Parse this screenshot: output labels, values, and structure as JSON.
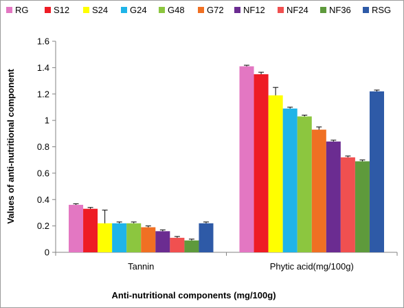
{
  "chart_data": {
    "type": "bar",
    "title": "",
    "xlabel": "Anti-nutritional components (mg/100g)",
    "ylabel": "Values of anti-nutritional component",
    "ylim": [
      0,
      1.6
    ],
    "yticks": [
      "0",
      "0.2",
      "0.4",
      "0.6",
      "0.8",
      "1",
      "1.2",
      "1.4",
      "1.6"
    ],
    "categories": [
      "Tannin",
      "Phytic acid(mg/100g)"
    ],
    "legend_position": "top",
    "grid": false,
    "error_bars": true,
    "series": [
      {
        "name": "RG",
        "color": "#e377c2",
        "values": [
          0.36,
          1.41
        ],
        "errors": [
          0.008,
          0.008
        ]
      },
      {
        "name": "S12",
        "color": "#ee1c25",
        "values": [
          0.33,
          1.35
        ],
        "errors": [
          0.01,
          0.015
        ]
      },
      {
        "name": "S24",
        "color": "#ffff00",
        "values": [
          0.22,
          1.19
        ],
        "errors": [
          0.1,
          0.06
        ]
      },
      {
        "name": "G24",
        "color": "#1fb4e8",
        "values": [
          0.22,
          1.09
        ],
        "errors": [
          0.01,
          0.01
        ]
      },
      {
        "name": "G48",
        "color": "#8cc63f",
        "values": [
          0.22,
          1.03
        ],
        "errors": [
          0.01,
          0.01
        ]
      },
      {
        "name": "G72",
        "color": "#f07023",
        "values": [
          0.19,
          0.93
        ],
        "errors": [
          0.01,
          0.02
        ]
      },
      {
        "name": "NF12",
        "color": "#6b2c91",
        "values": [
          0.16,
          0.84
        ],
        "errors": [
          0.01,
          0.01
        ]
      },
      {
        "name": "NF24",
        "color": "#f05050",
        "values": [
          0.11,
          0.72
        ],
        "errors": [
          0.01,
          0.01
        ]
      },
      {
        "name": "NF36",
        "color": "#5e9a3c",
        "values": [
          0.09,
          0.69
        ],
        "errors": [
          0.01,
          0.01
        ]
      },
      {
        "name": "RSG",
        "color": "#2e5aa7",
        "values": [
          0.22,
          1.22
        ],
        "errors": [
          0.01,
          0.01
        ]
      }
    ]
  }
}
